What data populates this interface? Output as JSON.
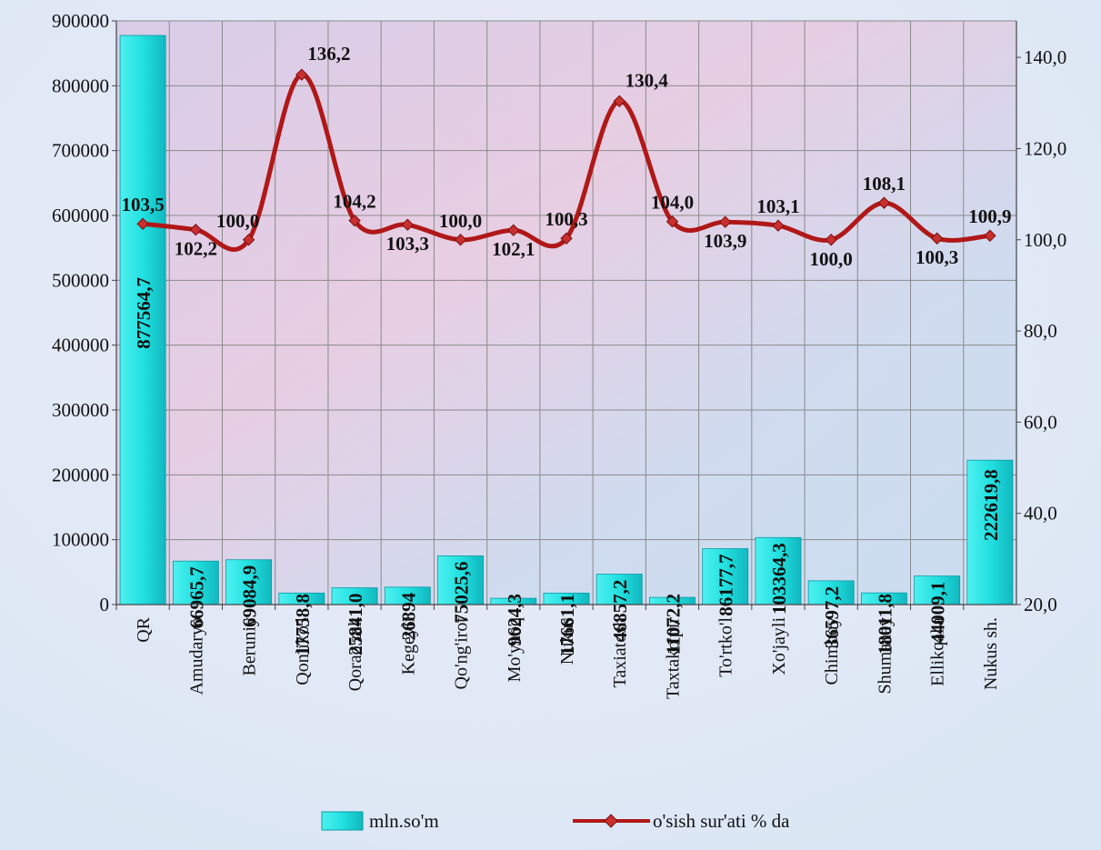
{
  "chart_data": {
    "type": "bar",
    "title": "",
    "xlabel": "",
    "ylabel": "",
    "categories": [
      "QR",
      "Amudaryo",
      "Beruniy",
      "Qonliko'l",
      "Qorao'zak",
      "Kegeyli",
      "Qo'ng'irot",
      "Mo'ynoq",
      "Nukus",
      "Taxiatosh",
      "Taxtako'pir",
      "To'rtko'l",
      "Xo'jayli",
      "Chimboy",
      "Shumanay",
      "Ellikqal'a",
      "Nukus sh."
    ],
    "series": [
      {
        "name": "mln.so'm",
        "type": "bar",
        "axis": "left",
        "color": "#22e0e0",
        "values": [
          877564.7,
          66965.7,
          69084.9,
          17758.8,
          25841.0,
          26894,
          75025.6,
          9624.3,
          17661.1,
          46857.2,
          11072.2,
          86177.7,
          103364.3,
          36597.2,
          18011.8,
          44009.1,
          222619.8
        ],
        "labels": [
          "877564,7",
          "66965,7",
          "69084,9",
          "17758,8",
          "25841,0",
          "26894",
          "75025,6",
          "9624,3",
          "17661,1",
          "46857,2",
          "11072,2",
          "86177,7",
          "103364,3",
          "36597,2",
          "18011,8",
          "44009,1",
          "222619,8"
        ]
      },
      {
        "name": "o'sish sur'ati % da",
        "type": "line",
        "axis": "right",
        "color": "#b01818",
        "values": [
          103.5,
          102.2,
          100.0,
          136.2,
          104.2,
          103.3,
          100.0,
          102.1,
          100.3,
          130.4,
          104.0,
          103.9,
          103.1,
          100.0,
          108.1,
          100.3,
          100.9
        ],
        "labels": [
          "103,5",
          "102,2",
          "100,0",
          "136,2",
          "104,2",
          "103,3",
          "100,0",
          "102,1",
          "100,3",
          "130,4",
          "104,0",
          "103,9",
          "103,1",
          "100,0",
          "108,1",
          "100,3",
          "100,9"
        ]
      }
    ],
    "y_left": {
      "min": 0,
      "max": 900000,
      "step": 100000,
      "ticks": [
        "0",
        "100000",
        "200000",
        "300000",
        "400000",
        "500000",
        "600000",
        "700000",
        "800000",
        "900000"
      ]
    },
    "y_right": {
      "min": 20,
      "max": 148,
      "ticks": [
        "20,0",
        "40,0",
        "60,0",
        "80,0",
        "100,0",
        "120,0",
        "140,0"
      ]
    },
    "grid": true,
    "legend_position": "bottom"
  }
}
